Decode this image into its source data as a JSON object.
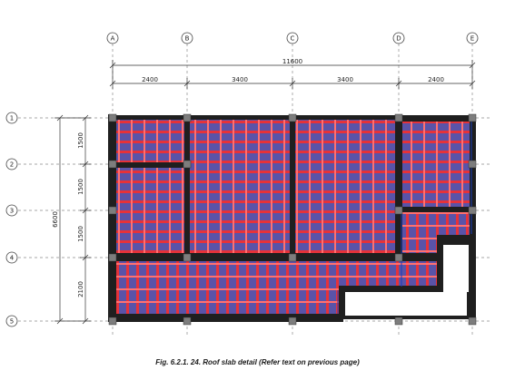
{
  "grid": {
    "columns": [
      "A",
      "B",
      "C",
      "D",
      "E"
    ],
    "rows": [
      "1",
      "2",
      "3",
      "4",
      "5"
    ]
  },
  "dimensions": {
    "overall_x": "11600",
    "spans_x": [
      "2400",
      "3400",
      "3400",
      "2400"
    ],
    "overall_y": "6600",
    "spans_y": [
      "1500",
      "1500",
      "1500",
      "2100"
    ]
  },
  "caption": "Fig. 6.2.1. 24. Roof slab detail (Refer text on previous page)",
  "colors": {
    "beam": "#1f1f1f",
    "slab_fill": "#5a53a8",
    "rib": "#e5323a",
    "column": "#7d7d7d",
    "grid_line": "#8a8a8a"
  }
}
